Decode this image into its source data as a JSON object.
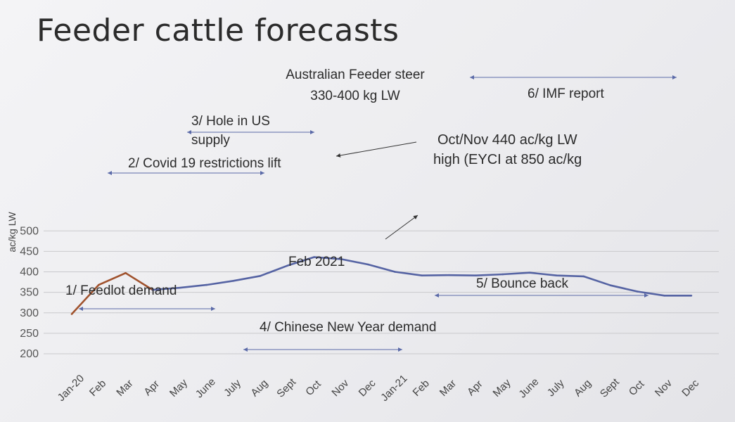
{
  "slide_title": "Feeder cattle forecasts",
  "chart_data": {
    "type": "line",
    "title": "Australian Feeder steer",
    "subtitle": "330-400 kg LW",
    "ylabel": "ac/kg LW",
    "xlabel": "",
    "ylim": [
      200,
      500
    ],
    "yticks": [
      200,
      250,
      300,
      350,
      400,
      450,
      500
    ],
    "grid": true,
    "categories": [
      "Jan-20",
      "Feb",
      "Mar",
      "Apr",
      "May",
      "June",
      "July",
      "Aug",
      "Sept",
      "Oct",
      "Nov",
      "Dec",
      "Jan-21",
      "Feb",
      "Mar",
      "Apr",
      "May",
      "June",
      "July",
      "Aug",
      "Sept",
      "Oct",
      "Nov",
      "Dec"
    ],
    "series": [
      {
        "name": "",
        "color": "#a0522d",
        "values": [
          297,
          368,
          397,
          356,
          null,
          null,
          null,
          null,
          null,
          null,
          null,
          null,
          null,
          null,
          null,
          null,
          null,
          null,
          null,
          null,
          null,
          null,
          null,
          null
        ]
      },
      {
        "name": "",
        "color": "#5563a3",
        "values": [
          null,
          null,
          null,
          356,
          361,
          368,
          378,
          390,
          415,
          436,
          431,
          418,
          400,
          391,
          392,
          391,
          394,
          398,
          391,
          389,
          367,
          352,
          342,
          342
        ]
      }
    ],
    "annotations": [
      {
        "id": "feedlot",
        "text": "1/ Feedlot demand",
        "range": [
          "Jan-20",
          "July"
        ]
      },
      {
        "id": "covid",
        "text": "2/ Covid 19 restrictions lift",
        "range": [
          "Feb",
          "Aug"
        ]
      },
      {
        "id": "hole-line1",
        "text": "3/ Hole in US",
        "range": [
          "May",
          "Sept"
        ]
      },
      {
        "id": "hole-line2",
        "text": "supply"
      },
      {
        "id": "cny",
        "text": "4/ Chinese New Year demand",
        "range": [
          "Aug",
          "Feb"
        ]
      },
      {
        "id": "bounce",
        "text": "5/ Bounce back",
        "range": [
          "Feb",
          "Oct"
        ]
      },
      {
        "id": "imf",
        "text": "6/ IMF report",
        "range": [
          "Apr",
          "Nov"
        ]
      },
      {
        "id": "peak-line1",
        "text": "Oct/Nov  440 ac/kg LW"
      },
      {
        "id": "peak-line2",
        "text": "high (EYCI at 850 ac/kg"
      },
      {
        "id": "feb2021",
        "text": "Feb 2021"
      }
    ],
    "colors": {
      "grid": "#c9c9cc",
      "arrow": "#5b6aa8",
      "pointer": "#333333",
      "text": "#2b2b2b"
    }
  }
}
